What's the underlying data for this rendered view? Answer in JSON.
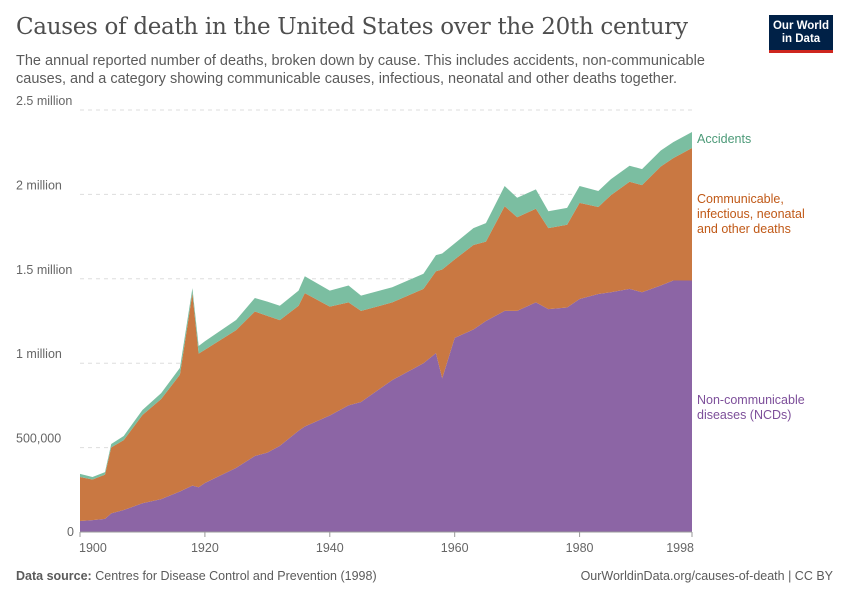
{
  "header": {
    "title": "Causes of death in the United States over the 20th century",
    "subtitle": "The annual reported number of deaths, broken down by cause. This includes accidents, non-communicable causes, and a category showing communicable causes, infectious, neonatal and other deaths together.",
    "logo": "Our World in Data"
  },
  "footer": {
    "source_label": "Data source:",
    "source": "Centres for Disease Control and Prevention (1998)",
    "url": "OurWorldinData.org/causes-of-death | CC BY"
  },
  "chart_data": {
    "type": "area",
    "stacked": true,
    "title": "Causes of death in the United States over the 20th century",
    "xlim": [
      1900,
      1998
    ],
    "ylim": [
      0,
      2500000
    ],
    "x_ticks": [
      1900,
      1920,
      1940,
      1960,
      1980,
      1998
    ],
    "y_ticks": [
      {
        "v": 0,
        "label": "0"
      },
      {
        "v": 500000,
        "label": "500,000"
      },
      {
        "v": 1000000,
        "label": "1 million"
      },
      {
        "v": 1500000,
        "label": "1.5 million"
      },
      {
        "v": 2000000,
        "label": "2 million"
      },
      {
        "v": 2500000,
        "label": "2.5 million"
      }
    ],
    "grid": "horizontal dashed",
    "legend": "inline-right",
    "x": [
      1900,
      1902,
      1904,
      1905,
      1907,
      1910,
      1913,
      1916,
      1918,
      1919,
      1920,
      1925,
      1928,
      1930,
      1932,
      1935,
      1936,
      1940,
      1943,
      1945,
      1950,
      1955,
      1957,
      1958,
      1960,
      1963,
      1965,
      1968,
      1970,
      1973,
      1975,
      1978,
      1980,
      1983,
      1985,
      1988,
      1990,
      1993,
      1995,
      1998
    ],
    "series": [
      {
        "name": "Non-communicable diseases (NCDs)",
        "color": "#8c65a5",
        "values": [
          65000,
          70000,
          78000,
          110000,
          130000,
          170000,
          195000,
          240000,
          275000,
          265000,
          290000,
          380000,
          450000,
          470000,
          510000,
          600000,
          625000,
          690000,
          750000,
          770000,
          900000,
          1000000,
          1060000,
          910000,
          1150000,
          1200000,
          1250000,
          1310000,
          1310000,
          1360000,
          1320000,
          1330000,
          1380000,
          1410000,
          1420000,
          1440000,
          1420000,
          1460000,
          1490000,
          1490000
        ]
      },
      {
        "name": "Communicable, infectious, neonatal and other deaths",
        "color": "#c97842",
        "values": [
          261000,
          241000,
          262000,
          391000,
          414000,
          523000,
          593000,
          692000,
          1140000,
          792000,
          790000,
          816000,
          856000,
          810000,
          745000,
          740000,
          790000,
          645000,
          610000,
          540000,
          460000,
          440000,
          485000,
          645000,
          465000,
          500000,
          470000,
          620000,
          555000,
          555000,
          480000,
          490000,
          570000,
          515000,
          575000,
          635000,
          635000,
          705000,
          725000,
          785000
        ]
      },
      {
        "name": "Accidents",
        "color": "#7bbea1",
        "values": [
          18000,
          15000,
          15000,
          20000,
          25000,
          30000,
          35000,
          40000,
          30000,
          45000,
          50000,
          60000,
          80000,
          85000,
          85000,
          90000,
          100000,
          95000,
          100000,
          90000,
          90000,
          90000,
          95000,
          95000,
          95000,
          100000,
          110000,
          120000,
          115000,
          115000,
          100000,
          100000,
          100000,
          95000,
          95000,
          95000,
          95000,
          95000,
          95000,
          95000
        ]
      }
    ],
    "labels": {
      "accidents": [
        "Accidents"
      ],
      "communicable": [
        "Communicable,",
        "infectious, neonatal",
        "and other deaths"
      ],
      "ncd": [
        "Non-communicable",
        "diseases (NCDs)"
      ]
    }
  }
}
